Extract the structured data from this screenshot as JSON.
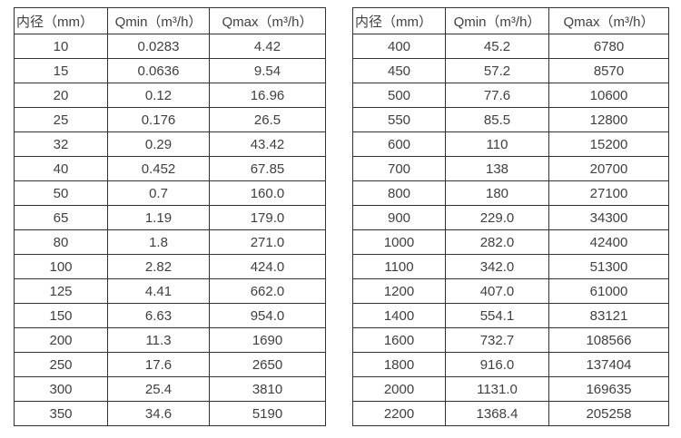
{
  "page": {
    "background_color": "#ffffff",
    "border_color": "#333333",
    "text_color": "#404040"
  },
  "tables": [
    {
      "name": "flow-rate-table-small-diameters",
      "headers": [
        "内径（mm）",
        "Qmin（m³/h）",
        "Qmax（m³/h）"
      ],
      "rows": [
        [
          "10",
          "0.0283",
          "4.42"
        ],
        [
          "15",
          "0.0636",
          "9.54"
        ],
        [
          "20",
          "0.12",
          "16.96"
        ],
        [
          "25",
          "0.176",
          "26.5"
        ],
        [
          "32",
          "0.29",
          "43.42"
        ],
        [
          "40",
          "0.452",
          "67.85"
        ],
        [
          "50",
          "0.7",
          "160.0"
        ],
        [
          "65",
          "1.19",
          "179.0"
        ],
        [
          "80",
          "1.8",
          "271.0"
        ],
        [
          "100",
          "2.82",
          "424.0"
        ],
        [
          "125",
          "4.41",
          "662.0"
        ],
        [
          "150",
          "6.63",
          "954.0"
        ],
        [
          "200",
          "11.3",
          "1690"
        ],
        [
          "250",
          "17.6",
          "2650"
        ],
        [
          "300",
          "25.4",
          "3810"
        ],
        [
          "350",
          "34.6",
          "5190"
        ]
      ]
    },
    {
      "name": "flow-rate-table-large-diameters",
      "headers": [
        "内径（mm）",
        "Qmin（m³/h）",
        "Qmax（m³/h）"
      ],
      "rows": [
        [
          "400",
          "45.2",
          "6780"
        ],
        [
          "450",
          "57.2",
          "8570"
        ],
        [
          "500",
          "77.6",
          "10600"
        ],
        [
          "550",
          "85.5",
          "12800"
        ],
        [
          "600",
          "110",
          "15200"
        ],
        [
          "700",
          "138",
          "20700"
        ],
        [
          "800",
          "180",
          "27100"
        ],
        [
          "900",
          "229.0",
          "34300"
        ],
        [
          "1000",
          "282.0",
          "42400"
        ],
        [
          "1100",
          "342.0",
          "51300"
        ],
        [
          "1200",
          "407.0",
          "61000"
        ],
        [
          "1400",
          "554.1",
          "83121"
        ],
        [
          "1600",
          "732.7",
          "108566"
        ],
        [
          "1800",
          "916.0",
          "137404"
        ],
        [
          "2000",
          "1131.0",
          "169635"
        ],
        [
          "2200",
          "1368.4",
          "205258"
        ]
      ]
    }
  ]
}
